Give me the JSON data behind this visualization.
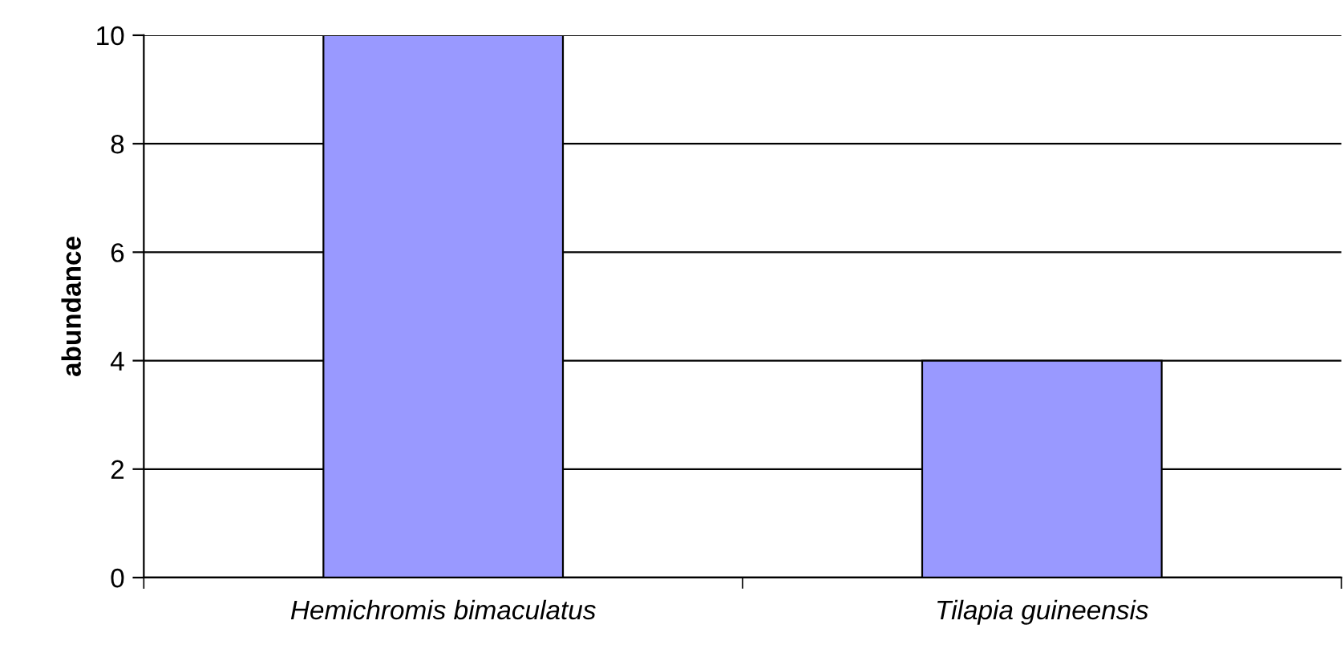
{
  "chart_data": {
    "type": "bar",
    "ylabel": "abundance",
    "categories": [
      "Hemichromis bimaculatus",
      "Tilapia guineensis"
    ],
    "values": [
      10,
      4
    ],
    "color": "#9999ff",
    "ylim": [
      0,
      10
    ],
    "yticks": [
      0,
      2,
      4,
      6,
      8,
      10
    ],
    "grid": "y",
    "legend": false
  }
}
